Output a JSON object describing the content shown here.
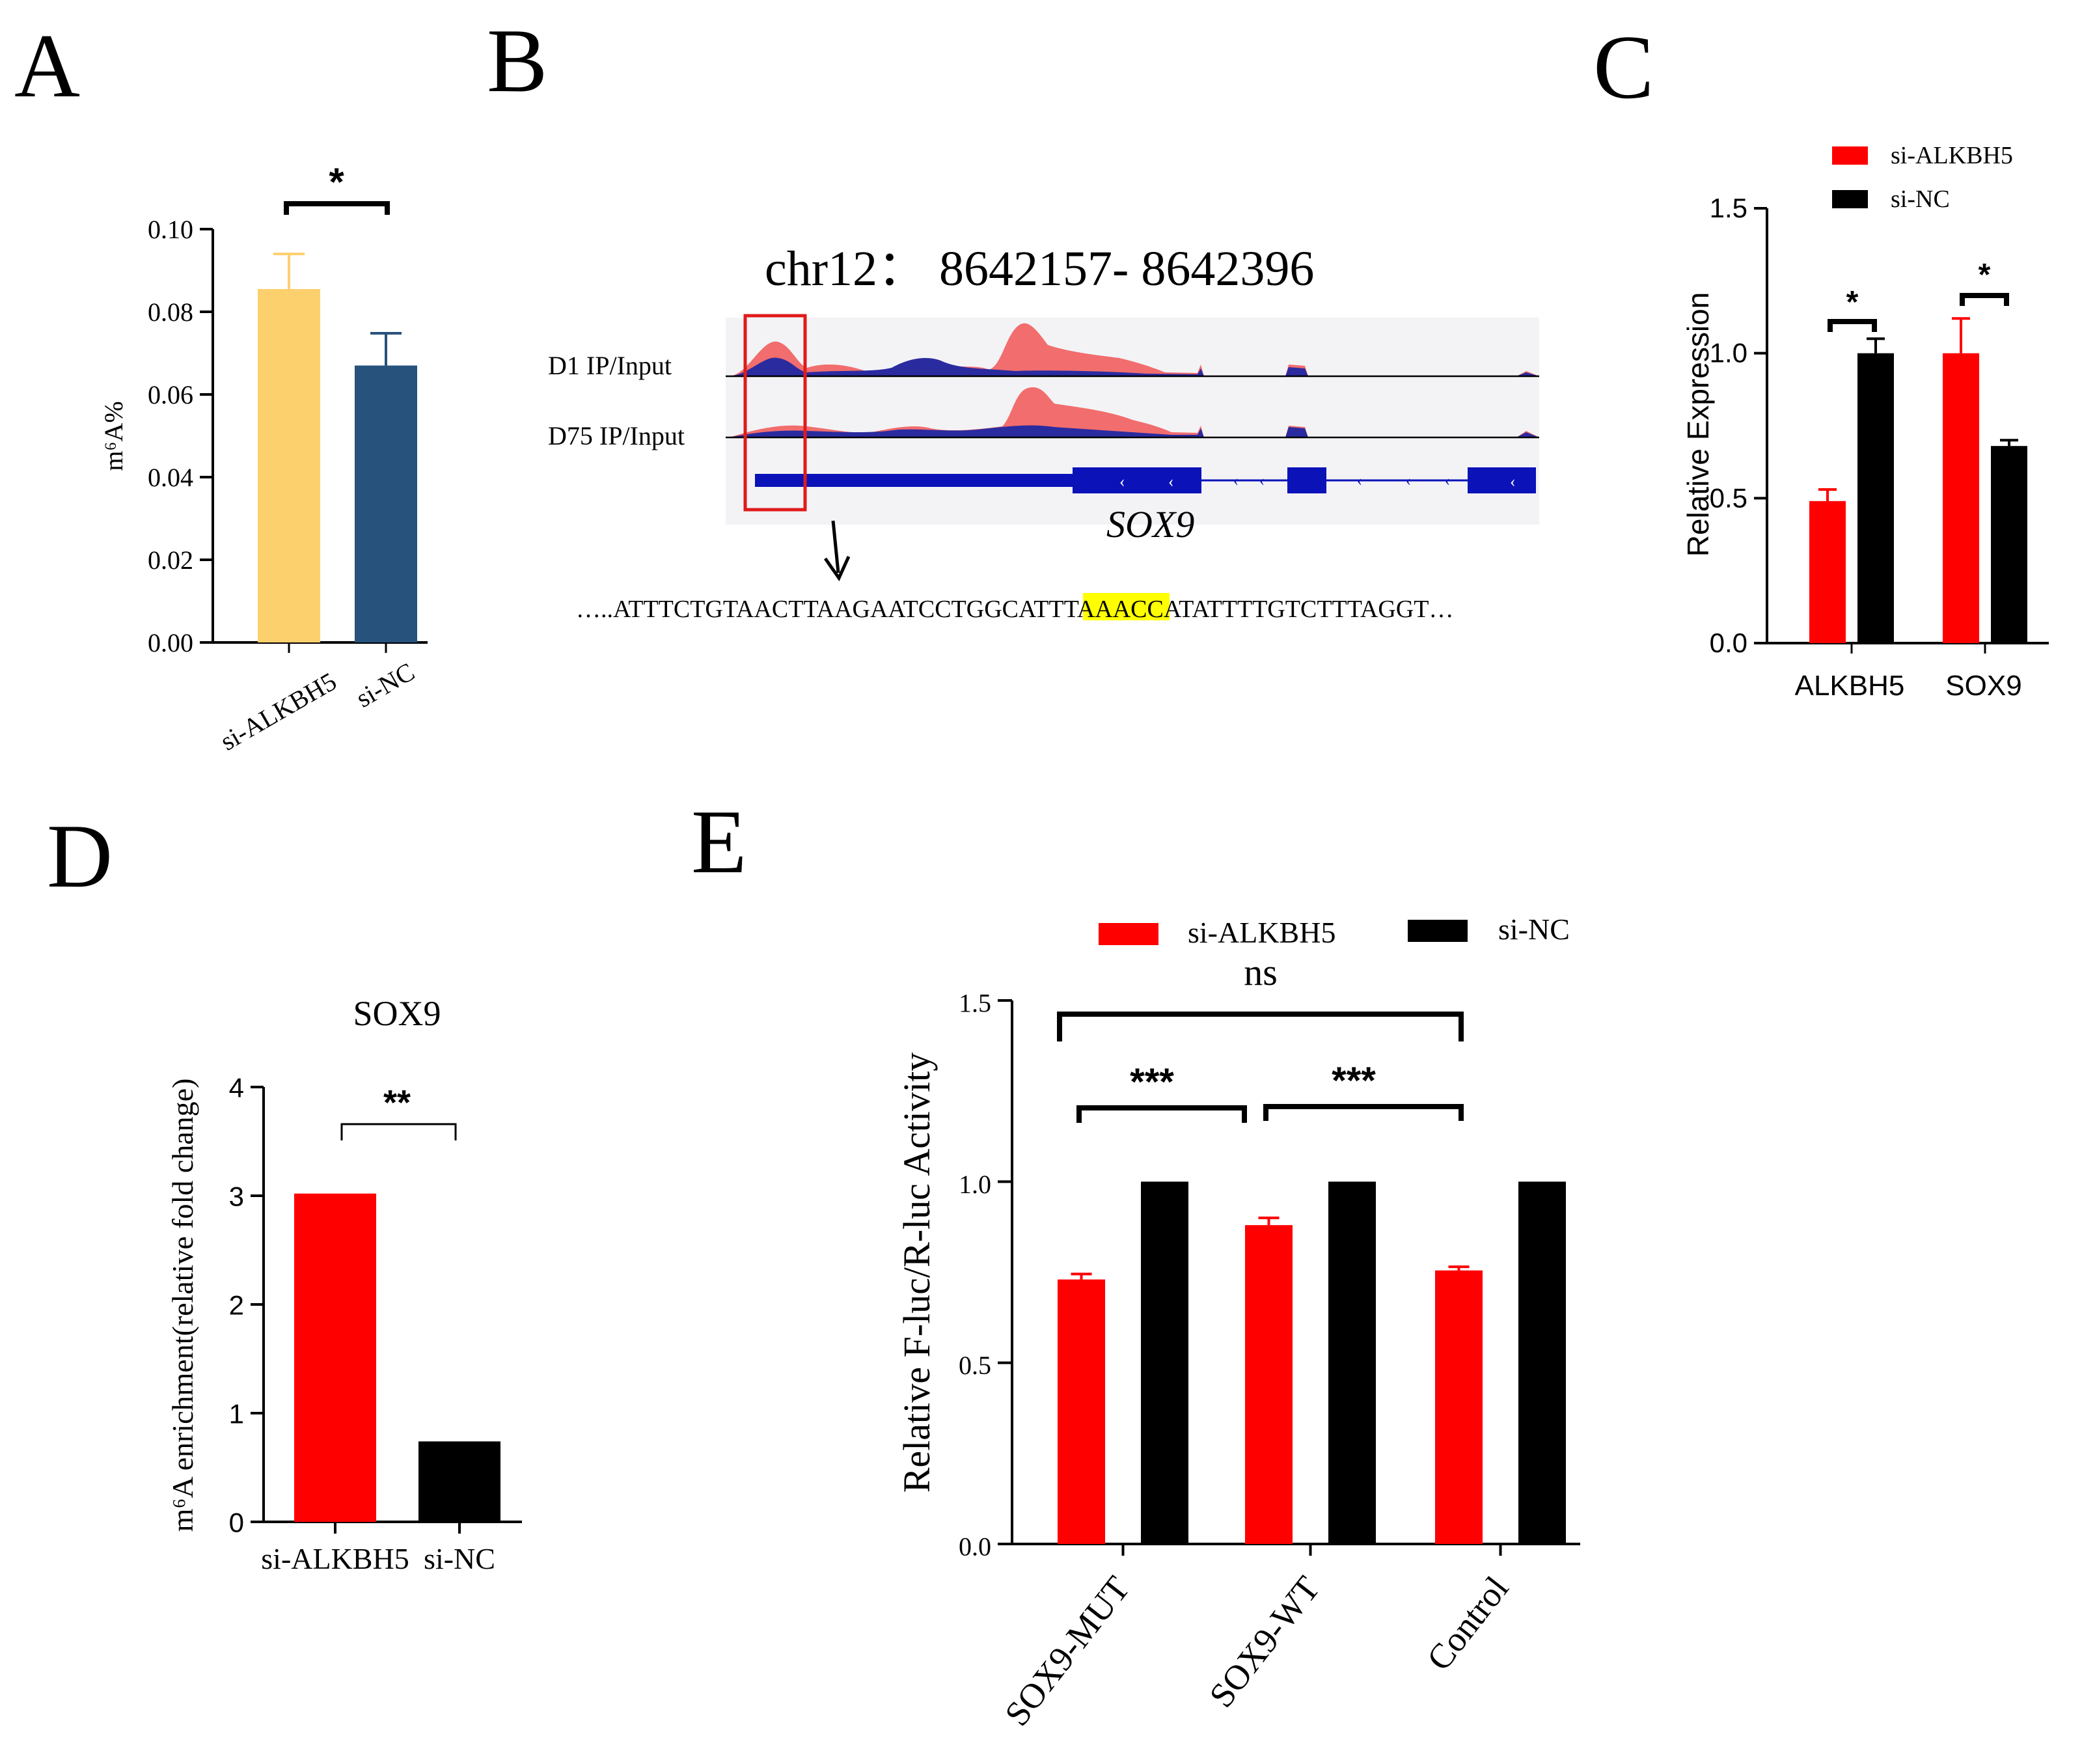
{
  "panels": {
    "A": {
      "letter": "A"
    },
    "B": {
      "letter": "B",
      "title": "chr12： 8642157- 8642396",
      "track_labels": [
        "D1 IP/Input",
        "D75 IP/Input"
      ],
      "gene": "SOX9",
      "sequence_before": "…..ATTTCTGTAACTTAAGAATCCTGGCATTT",
      "sequence_motif": "AAACC",
      "sequence_after": "ATATTTTGTCTTTAGGT…",
      "colors": {
        "ip_track": "#f26d6d",
        "input_track": "#2b2ba0",
        "gene_model": "#0a12b8",
        "highlight_box": "#e01b1b",
        "motif_highlight": "#ffff00"
      }
    },
    "C": {
      "letter": "C"
    },
    "D": {
      "letter": "D"
    },
    "E": {
      "letter": "E"
    }
  },
  "chart_data": [
    {
      "panel": "A",
      "type": "bar",
      "categories": [
        "si-ALKBH5",
        "si-NC"
      ],
      "values": [
        0.0855,
        0.067
      ],
      "errors": [
        0.0085,
        0.0078
      ],
      "colors": [
        "#fdd06e",
        "#26527c"
      ],
      "ylabel": "m⁶A%",
      "ylim": [
        0,
        0.1
      ],
      "yticks": [
        "0.00",
        "0.02",
        "0.04",
        "0.06",
        "0.08",
        "0.10"
      ],
      "significance": [
        {
          "pair": [
            "si-ALKBH5",
            "si-NC"
          ],
          "label": "*"
        }
      ]
    },
    {
      "panel": "C",
      "type": "bar",
      "categories": [
        "ALKBH5",
        "SOX9"
      ],
      "series": [
        {
          "name": "si-ALKBH5",
          "color": "#ff0000",
          "values": [
            0.49,
            1.0
          ],
          "errors": [
            0.04,
            0.12
          ]
        },
        {
          "name": "si-NC",
          "color": "#000000",
          "values": [
            1.0,
            0.68
          ],
          "errors": [
            0.05,
            0.02
          ]
        }
      ],
      "ylabel": "Relative Expression",
      "ylim": [
        0,
        1.5
      ],
      "yticks": [
        "0.0",
        "0.5",
        "1.0",
        "1.5"
      ],
      "significance": [
        {
          "category": "ALKBH5",
          "label": "*"
        },
        {
          "category": "SOX9",
          "label": "*"
        }
      ]
    },
    {
      "panel": "D",
      "type": "bar",
      "title": "SOX9",
      "categories": [
        "si-ALKBH5",
        "si-NC"
      ],
      "values": [
        3.02,
        0.74
      ],
      "colors": [
        "#ff0000",
        "#000000"
      ],
      "ylabel": "m⁶A enrichment(relative fold change)",
      "ylim": [
        0,
        4
      ],
      "yticks": [
        "0",
        "1",
        "2",
        "3",
        "4"
      ],
      "significance": [
        {
          "pair": [
            "si-ALKBH5",
            "si-NC"
          ],
          "label": "**"
        }
      ]
    },
    {
      "panel": "E",
      "type": "bar",
      "categories": [
        "SOX9-MUT",
        "SOX9-WT",
        "Control"
      ],
      "series": [
        {
          "name": "si-ALKBH5",
          "color": "#ff0000",
          "values": [
            0.73,
            0.88,
            0.755
          ],
          "errors": [
            0.015,
            0.02,
            0.01
          ]
        },
        {
          "name": "si-NC",
          "color": "#000000",
          "values": [
            1.0,
            1.0,
            1.0
          ],
          "errors": [
            0,
            0,
            0
          ]
        }
      ],
      "ylabel": "Relative F-luc/R-luc Activity",
      "ylim": [
        0,
        1.5
      ],
      "yticks": [
        "0.0",
        "0.5",
        "1.0",
        "1.5"
      ],
      "significance": [
        {
          "pair": [
            "SOX9-MUT",
            "Control"
          ],
          "label": "ns"
        },
        {
          "pair": [
            "SOX9-MUT",
            "SOX9-WT"
          ],
          "label": "***"
        },
        {
          "pair": [
            "SOX9-WT",
            "Control"
          ],
          "label": "***"
        }
      ]
    }
  ]
}
